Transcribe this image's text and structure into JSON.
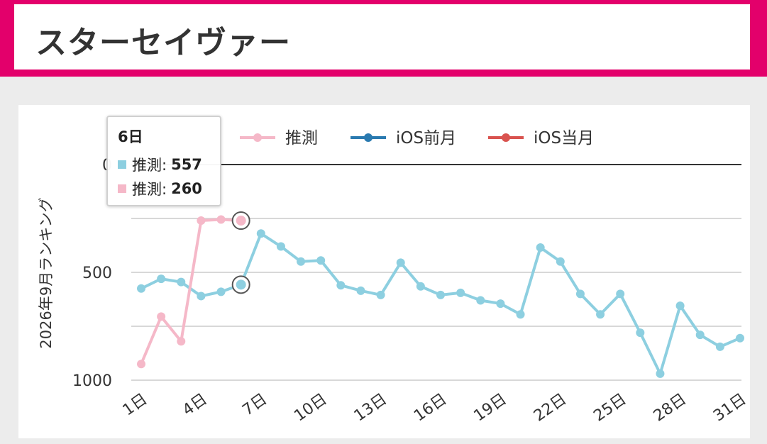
{
  "page": {
    "title": "スターセイヴァー"
  },
  "colors": {
    "brand": "#e3006b",
    "estimate_pink": "#f5b8c8",
    "estimate_blue": "#8dcfe0",
    "ios_prev": "#2a7ab0",
    "ios_current": "#d9534f"
  },
  "legend": [
    {
      "label": "推測",
      "color": "#f5b8c8"
    },
    {
      "label": "iOS前月",
      "color": "#2a7ab0"
    },
    {
      "label": "iOS当月",
      "color": "#d9534f"
    }
  ],
  "tooltip": {
    "title": "6日",
    "rows": [
      {
        "label": "推測:",
        "value": "557",
        "color": "#8dcfe0"
      },
      {
        "label": "推測:",
        "value": "260",
        "color": "#f5b8c8"
      }
    ]
  },
  "chart_data": {
    "type": "line",
    "ylabel": "2026年9月ランキング",
    "y_axis": {
      "min": 0,
      "max": 1000,
      "reversed": true,
      "tick_values": [
        0,
        500,
        1000
      ],
      "tick_labels": [
        "0",
        "500",
        "1000"
      ]
    },
    "x_tick_labels": [
      "1日",
      "4日",
      "7日",
      "10日",
      "13日",
      "16日",
      "19日",
      "22日",
      "25日",
      "28日",
      "31日"
    ],
    "x_tick_days": [
      1,
      4,
      7,
      10,
      13,
      16,
      19,
      22,
      25,
      28,
      31
    ],
    "series": [
      {
        "name": "推測",
        "color": "#8dcfe0",
        "x": [
          1,
          2,
          3,
          4,
          5,
          6,
          7,
          8,
          9,
          10,
          11,
          12,
          13,
          14,
          15,
          16,
          17,
          18,
          19,
          20,
          21,
          22,
          23,
          24,
          25,
          26,
          27,
          28,
          29,
          30,
          31
        ],
        "values": [
          575,
          530,
          545,
          610,
          590,
          557,
          320,
          380,
          450,
          445,
          560,
          585,
          605,
          455,
          565,
          605,
          595,
          630,
          645,
          695,
          385,
          450,
          600,
          695,
          600,
          780,
          970,
          655,
          790,
          845,
          805
        ]
      },
      {
        "name": "推測",
        "color": "#f5b8c8",
        "x": [
          1,
          2,
          3,
          4,
          5,
          6
        ],
        "values": [
          925,
          705,
          820,
          260,
          255,
          260
        ]
      }
    ],
    "highlight_day": 6,
    "grid": true
  }
}
